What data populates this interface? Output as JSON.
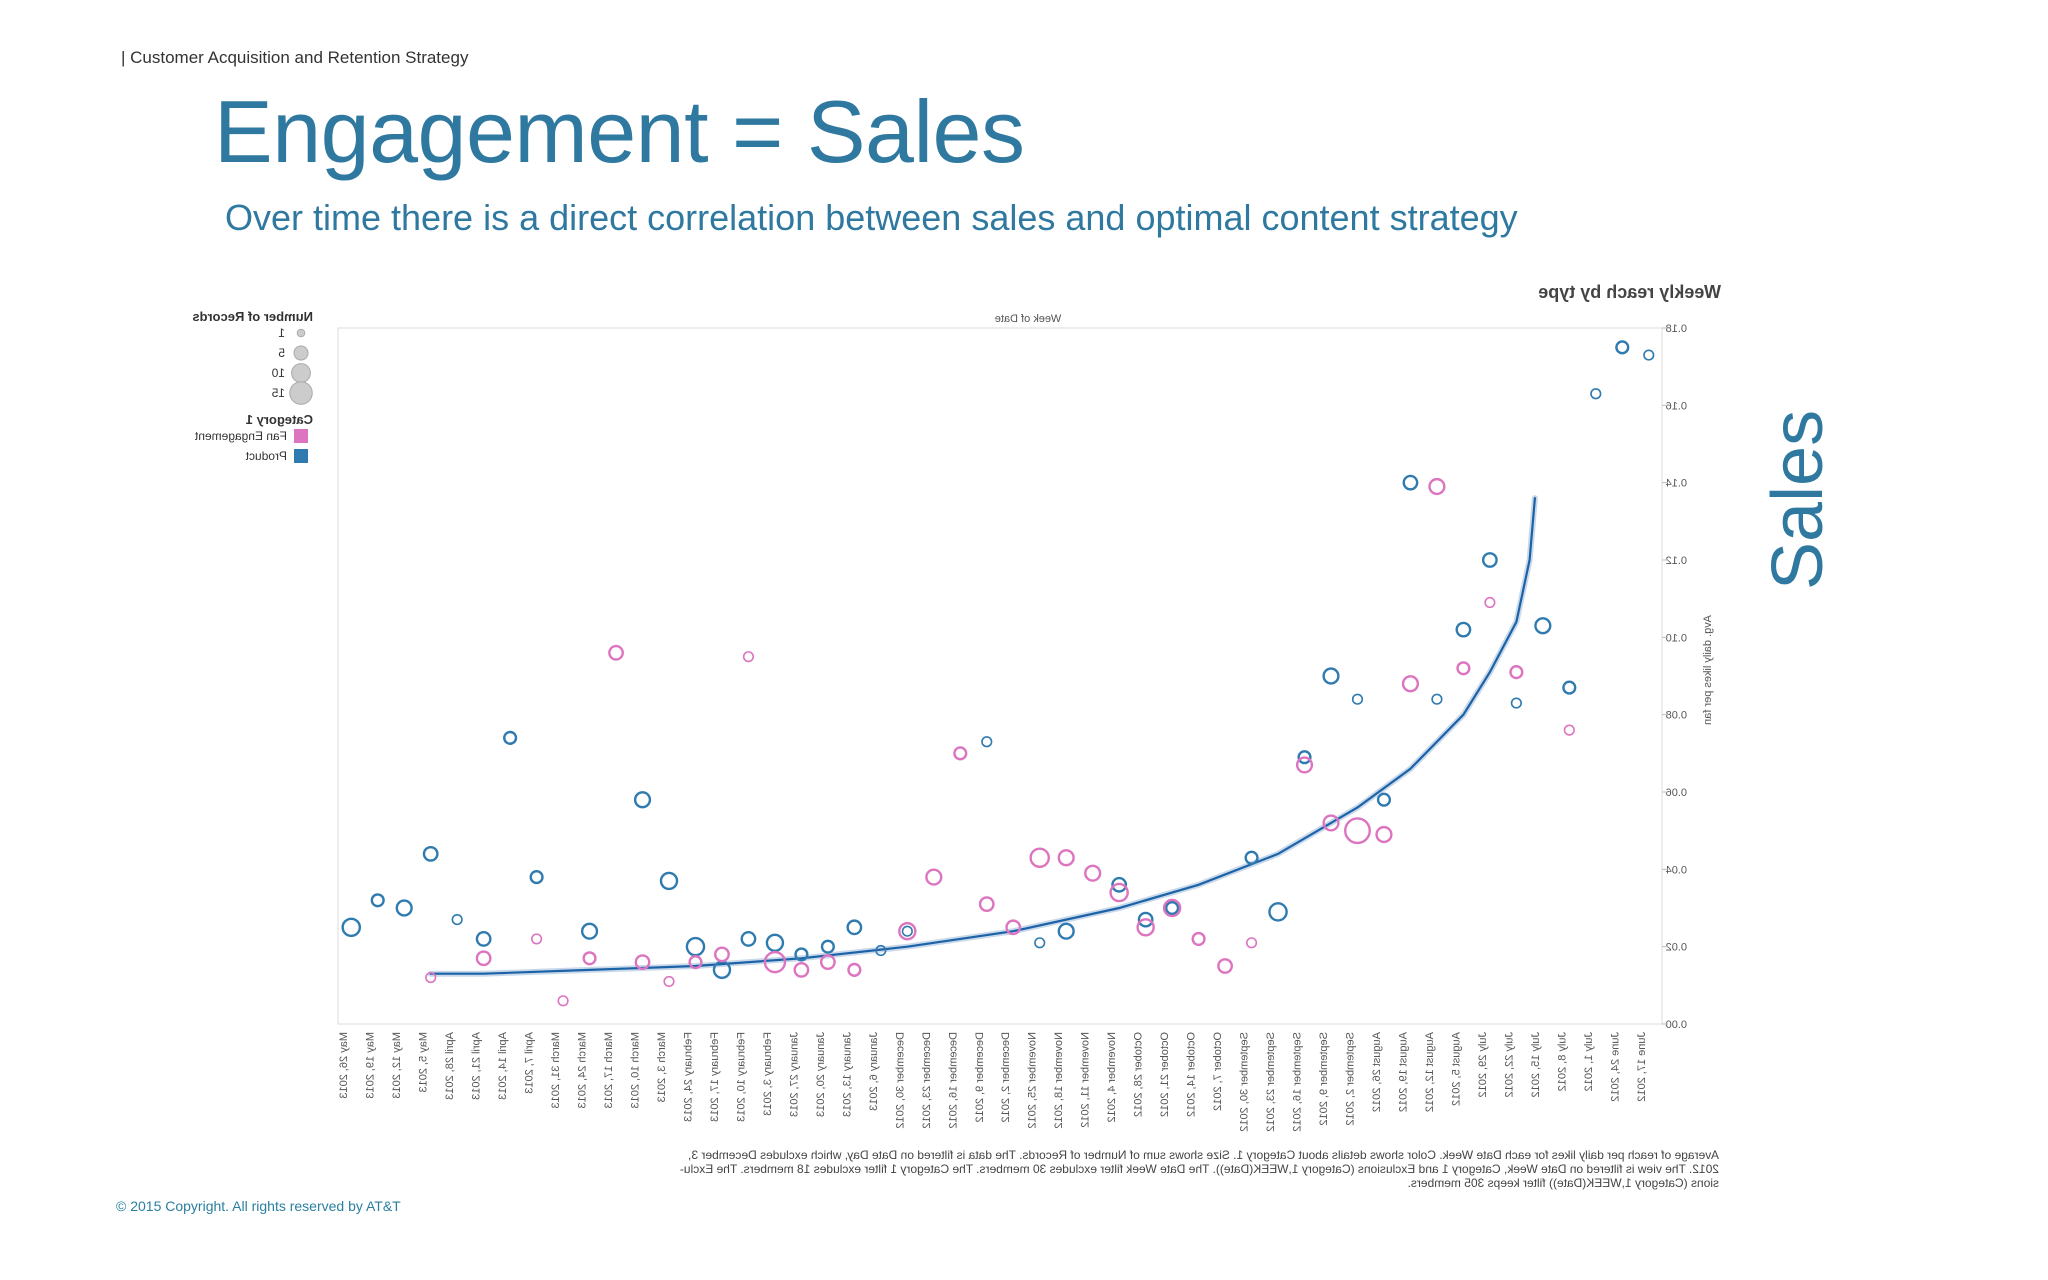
{
  "slide": {
    "breadcrumb": "| Customer Acquisition and Retention Strategy",
    "title": "Engagement = Sales",
    "subtitle": "Over time there is a direct correlation between sales and optimal content strategy",
    "side_label": "Sales",
    "copyright": "© 2015 Copyright.  All rights reserved by AT&T"
  },
  "colors": {
    "accent": "#2f79a0",
    "product": "#2f7bb0",
    "fan_engagement": "#dd74c0",
    "trend": "#1b62a8"
  },
  "chart_data": {
    "type": "scatter",
    "rendering": "mirrored horizontally (text reversed)",
    "title": "Weekly reach by type",
    "xlabel": "Week of Date",
    "ylabel": "Avg. daily likes per fan",
    "ylim": [
      0,
      0.18
    ],
    "yticks": [
      "0.00",
      "0.02",
      "0.04",
      "0.06",
      "0.08",
      "0.10",
      "0.12",
      "0.14",
      "0.16",
      "0.18"
    ],
    "categories": [
      "June 17, 2012",
      "June 24, 2012",
      "July 1, 2012",
      "July 8, 2012",
      "July 15, 2012",
      "July 22, 2012",
      "July 29, 2012",
      "August 5, 2012",
      "August 12, 2012",
      "August 19, 2012",
      "August 26, 2012",
      "September 2, 2012",
      "September 9, 2012",
      "September 16, 2012",
      "September 23, 2012",
      "September 30, 2012",
      "October 7, 2012",
      "October 14, 2012",
      "October 21, 2012",
      "October 28, 2012",
      "November 4, 2012",
      "November 11, 2012",
      "November 18, 2012",
      "November 25, 2012",
      "December 2, 2012",
      "December 9, 2012",
      "December 16, 2012",
      "December 23, 2012",
      "December 30, 2012",
      "January 6, 2013",
      "January 13, 2013",
      "January 20, 2013",
      "January 27, 2013",
      "February 3, 2013",
      "February 10, 2013",
      "February 17, 2013",
      "February 24, 2013",
      "March 3, 2013",
      "March 10, 2013",
      "March 17, 2013",
      "March 24, 2013",
      "March 31, 2013",
      "April 7, 2013",
      "April 14, 2013",
      "April 21, 2013",
      "April 28, 2013",
      "May 5, 2013",
      "May 12, 2013",
      "May 19, 2013",
      "May 26, 2013"
    ],
    "legend": {
      "size_title": "Number of Records",
      "size_items": [
        {
          "label": "1",
          "size": 1
        },
        {
          "label": "5",
          "size": 5
        },
        {
          "label": "10",
          "size": 10
        },
        {
          "label": "15",
          "size": 15
        }
      ],
      "color_title": "Category 1",
      "color_items": [
        {
          "label": "Fan Engagement",
          "series": "Fan Engagement"
        },
        {
          "label": "Product",
          "series": "Product"
        }
      ]
    },
    "series": [
      {
        "name": "Product",
        "points": [
          {
            "x": 0,
            "y": 0.173,
            "size": 1
          },
          {
            "x": 1,
            "y": 0.175,
            "size": 2
          },
          {
            "x": 2,
            "y": 0.163,
            "size": 1
          },
          {
            "x": 3,
            "y": 0.087,
            "size": 2
          },
          {
            "x": 4,
            "y": 0.103,
            "size": 4
          },
          {
            "x": 5,
            "y": 0.083,
            "size": 1
          },
          {
            "x": 6,
            "y": 0.12,
            "size": 3
          },
          {
            "x": 7,
            "y": 0.102,
            "size": 3
          },
          {
            "x": 8,
            "y": 0.084,
            "size": 1
          },
          {
            "x": 9,
            "y": 0.14,
            "size": 3
          },
          {
            "x": 10,
            "y": 0.058,
            "size": 2
          },
          {
            "x": 11,
            "y": 0.084,
            "size": 1
          },
          {
            "x": 12,
            "y": 0.09,
            "size": 4
          },
          {
            "x": 13,
            "y": 0.069,
            "size": 2
          },
          {
            "x": 14,
            "y": 0.029,
            "size": 6
          },
          {
            "x": 15,
            "y": 0.043,
            "size": 2
          },
          {
            "x": 18,
            "y": 0.03,
            "size": 2
          },
          {
            "x": 19,
            "y": 0.027,
            "size": 3
          },
          {
            "x": 20,
            "y": 0.036,
            "size": 3
          },
          {
            "x": 22,
            "y": 0.024,
            "size": 4
          },
          {
            "x": 23,
            "y": 0.021,
            "size": 1
          },
          {
            "x": 25,
            "y": 0.073,
            "size": 1
          },
          {
            "x": 28,
            "y": 0.024,
            "size": 1
          },
          {
            "x": 29,
            "y": 0.019,
            "size": 1
          },
          {
            "x": 30,
            "y": 0.025,
            "size": 3
          },
          {
            "x": 31,
            "y": 0.02,
            "size": 2
          },
          {
            "x": 32,
            "y": 0.018,
            "size": 2
          },
          {
            "x": 33,
            "y": 0.021,
            "size": 5
          },
          {
            "x": 34,
            "y": 0.022,
            "size": 3
          },
          {
            "x": 35,
            "y": 0.014,
            "size": 5
          },
          {
            "x": 36,
            "y": 0.02,
            "size": 6
          },
          {
            "x": 37,
            "y": 0.037,
            "size": 5
          },
          {
            "x": 38,
            "y": 0.058,
            "size": 4
          },
          {
            "x": 40,
            "y": 0.024,
            "size": 4
          },
          {
            "x": 42,
            "y": 0.038,
            "size": 2
          },
          {
            "x": 43,
            "y": 0.074,
            "size": 2
          },
          {
            "x": 44,
            "y": 0.022,
            "size": 3
          },
          {
            "x": 45,
            "y": 0.027,
            "size": 1
          },
          {
            "x": 46,
            "y": 0.044,
            "size": 3
          },
          {
            "x": 47,
            "y": 0.03,
            "size": 4
          },
          {
            "x": 48,
            "y": 0.032,
            "size": 2
          },
          {
            "x": 49,
            "y": 0.025,
            "size": 6
          }
        ]
      },
      {
        "name": "Fan Engagement",
        "points": [
          {
            "x": 3,
            "y": 0.076,
            "size": 1
          },
          {
            "x": 5,
            "y": 0.091,
            "size": 2
          },
          {
            "x": 6,
            "y": 0.109,
            "size": 1
          },
          {
            "x": 7,
            "y": 0.092,
            "size": 2
          },
          {
            "x": 8,
            "y": 0.139,
            "size": 4
          },
          {
            "x": 9,
            "y": 0.088,
            "size": 4
          },
          {
            "x": 10,
            "y": 0.049,
            "size": 4
          },
          {
            "x": 11,
            "y": 0.05,
            "size": 15
          },
          {
            "x": 12,
            "y": 0.052,
            "size": 4
          },
          {
            "x": 13,
            "y": 0.067,
            "size": 4
          },
          {
            "x": 15,
            "y": 0.021,
            "size": 1
          },
          {
            "x": 16,
            "y": 0.015,
            "size": 3
          },
          {
            "x": 17,
            "y": 0.022,
            "size": 2
          },
          {
            "x": 18,
            "y": 0.03,
            "size": 5
          },
          {
            "x": 19,
            "y": 0.025,
            "size": 5
          },
          {
            "x": 20,
            "y": 0.034,
            "size": 6
          },
          {
            "x": 21,
            "y": 0.039,
            "size": 4
          },
          {
            "x": 22,
            "y": 0.043,
            "size": 4
          },
          {
            "x": 23,
            "y": 0.043,
            "size": 7
          },
          {
            "x": 24,
            "y": 0.025,
            "size": 3
          },
          {
            "x": 25,
            "y": 0.031,
            "size": 3
          },
          {
            "x": 26,
            "y": 0.07,
            "size": 2
          },
          {
            "x": 27,
            "y": 0.038,
            "size": 4
          },
          {
            "x": 28,
            "y": 0.024,
            "size": 5
          },
          {
            "x": 30,
            "y": 0.014,
            "size": 2
          },
          {
            "x": 31,
            "y": 0.016,
            "size": 3
          },
          {
            "x": 32,
            "y": 0.014,
            "size": 3
          },
          {
            "x": 33,
            "y": 0.016,
            "size": 9
          },
          {
            "x": 34,
            "y": 0.095,
            "size": 1
          },
          {
            "x": 35,
            "y": 0.018,
            "size": 3
          },
          {
            "x": 36,
            "y": 0.016,
            "size": 2
          },
          {
            "x": 37,
            "y": 0.011,
            "size": 1
          },
          {
            "x": 38,
            "y": 0.016,
            "size": 3
          },
          {
            "x": 39,
            "y": 0.096,
            "size": 3
          },
          {
            "x": 40,
            "y": 0.017,
            "size": 2
          },
          {
            "x": 41,
            "y": 0.006,
            "size": 1
          },
          {
            "x": 42,
            "y": 0.022,
            "size": 1
          },
          {
            "x": 44,
            "y": 0.017,
            "size": 3
          },
          {
            "x": 46,
            "y": 0.012,
            "size": 1
          }
        ]
      },
      {
        "name": "",
        "type": "line",
        "points": [
          {
            "x": 4.3,
            "y": 0.136
          },
          {
            "x": 4.5,
            "y": 0.12
          },
          {
            "x": 5,
            "y": 0.104
          },
          {
            "x": 6,
            "y": 0.091
          },
          {
            "x": 7,
            "y": 0.08
          },
          {
            "x": 9,
            "y": 0.066
          },
          {
            "x": 11,
            "y": 0.056
          },
          {
            "x": 14,
            "y": 0.044
          },
          {
            "x": 17,
            "y": 0.036
          },
          {
            "x": 20,
            "y": 0.03
          },
          {
            "x": 24,
            "y": 0.024
          },
          {
            "x": 28,
            "y": 0.02
          },
          {
            "x": 32,
            "y": 0.017
          },
          {
            "x": 36,
            "y": 0.015
          },
          {
            "x": 40,
            "y": 0.014
          },
          {
            "x": 44,
            "y": 0.013
          },
          {
            "x": 46,
            "y": 0.013
          }
        ]
      }
    ],
    "footnote": [
      "Average of reach per daily likes for each Date Week.  Color shows details about Category 1.  Size shows sum of Number of Records. The data is filtered on Date Day, which excludes December 3,",
      "2012. The view is filtered on Date Week, Category 1 and Exclusions (Category 1,WEEK(Date)). The Date Week filter excludes 30 members. The Category 1 filter excludes 18 members. The Exclu-",
      "sions (Category 1,WEEK(Date)) filter keeps 305 members."
    ]
  }
}
